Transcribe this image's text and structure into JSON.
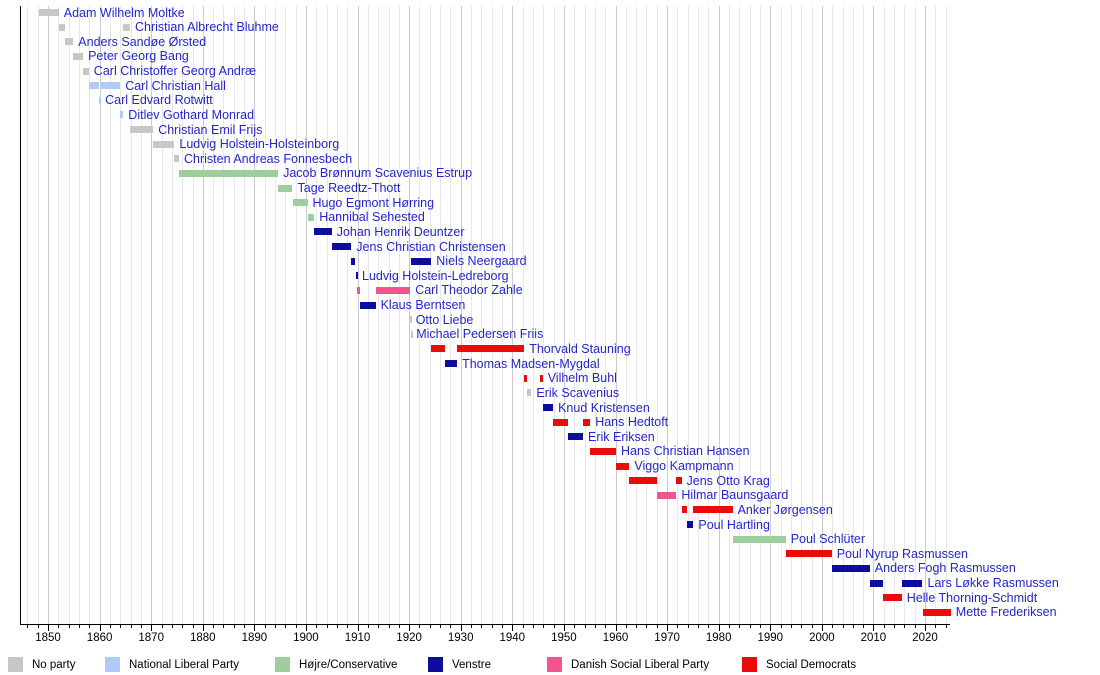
{
  "chart_data": {
    "type": "timeline",
    "description": "Gantt-style timeline of Danish prime ministers by party",
    "x_axis": {
      "unit": "year",
      "range": [
        1846,
        2025
      ],
      "minor_tick_step_years": 2,
      "major_tick_step_years": 10,
      "tick_labels": [
        "1850",
        "1860",
        "1870",
        "1880",
        "1890",
        "1900",
        "1910",
        "1920",
        "1930",
        "1940",
        "1950",
        "1960",
        "1970",
        "1980",
        "1990",
        "2000",
        "2010",
        "2020"
      ]
    },
    "grid": {
      "minor_color": "#e7e7ee",
      "major_color": "#cbcbd6",
      "on": true
    },
    "label_color": "#2525cd",
    "legend": [
      {
        "key": "no_party",
        "label": "No party",
        "color": "#c7c7c7"
      },
      {
        "key": "national_liberal",
        "label": "National Liberal Party",
        "color": "#b0ccf4"
      },
      {
        "key": "hojre",
        "label": "Højre/Conservative",
        "color": "#9ecd9e"
      },
      {
        "key": "venstre",
        "label": "Venstre",
        "color": "#0d0d9c"
      },
      {
        "key": "social_liberal",
        "label": "Danish Social Liberal Party",
        "color": "#f2558d"
      },
      {
        "key": "social_democrats",
        "label": "Social Democrats",
        "color": "#ec0b0b"
      }
    ],
    "prime_ministers": [
      {
        "name": "Adam Wilhelm Moltke",
        "party": "no_party",
        "terms": [
          [
            1848.2,
            1852.1
          ]
        ]
      },
      {
        "name": "Christian Albrecht Bluhme",
        "party": "no_party",
        "terms": [
          [
            1852.1,
            1853.3
          ],
          [
            1864.6,
            1865.9
          ]
        ]
      },
      {
        "name": "Anders Sandøe Ørsted",
        "party": "no_party",
        "terms": [
          [
            1853.3,
            1854.9
          ]
        ]
      },
      {
        "name": "Peter Georg Bang",
        "party": "no_party",
        "terms": [
          [
            1854.9,
            1856.8
          ]
        ]
      },
      {
        "name": "Carl Christoffer Georg Andræ",
        "party": "no_party",
        "terms": [
          [
            1856.8,
            1857.9
          ]
        ]
      },
      {
        "name": "Carl Christian Hall",
        "party": "national_liberal",
        "terms": [
          [
            1857.9,
            1859.9
          ],
          [
            1860.2,
            1864.0
          ]
        ]
      },
      {
        "name": "Carl Edvard Rotwitt",
        "party": "national_liberal",
        "terms": [
          [
            1859.9,
            1860.1
          ]
        ]
      },
      {
        "name": "Ditlev Gothard Monrad",
        "party": "national_liberal",
        "terms": [
          [
            1864.0,
            1864.6
          ]
        ]
      },
      {
        "name": "Christian Emil Frijs",
        "party": "no_party",
        "terms": [
          [
            1865.9,
            1870.4
          ]
        ]
      },
      {
        "name": "Ludvig Holstein-Holsteinborg",
        "party": "no_party",
        "terms": [
          [
            1870.4,
            1874.5
          ]
        ]
      },
      {
        "name": "Christen Andreas Fonnesbech",
        "party": "no_party",
        "terms": [
          [
            1874.5,
            1875.4
          ]
        ]
      },
      {
        "name": "Jacob Brønnum Scavenius Estrup",
        "party": "hojre",
        "terms": [
          [
            1875.4,
            1894.6
          ]
        ]
      },
      {
        "name": "Tage Reedtz-Thott",
        "party": "hojre",
        "terms": [
          [
            1894.6,
            1897.4
          ]
        ]
      },
      {
        "name": "Hugo Egmont Hørring",
        "party": "hojre",
        "terms": [
          [
            1897.4,
            1900.3
          ]
        ]
      },
      {
        "name": "Hannibal Sehested",
        "party": "hojre",
        "terms": [
          [
            1900.3,
            1901.6
          ]
        ]
      },
      {
        "name": "Johan Henrik Deuntzer",
        "party": "venstre",
        "terms": [
          [
            1901.6,
            1905.0
          ]
        ]
      },
      {
        "name": "Jens Christian Christensen",
        "party": "venstre",
        "terms": [
          [
            1905.0,
            1908.8
          ]
        ]
      },
      {
        "name": "Niels Neergaard",
        "party": "venstre",
        "terms": [
          [
            1908.8,
            1909.6
          ],
          [
            1920.4,
            1924.3
          ]
        ]
      },
      {
        "name": "Ludvig Holstein-Ledreborg",
        "party": "venstre",
        "terms": [
          [
            1909.6,
            1909.9
          ]
        ]
      },
      {
        "name": "Carl Theodor Zahle",
        "party": "social_liberal",
        "terms": [
          [
            1909.9,
            1910.5
          ],
          [
            1913.5,
            1920.2
          ]
        ]
      },
      {
        "name": "Klaus Berntsen",
        "party": "venstre",
        "terms": [
          [
            1910.5,
            1913.5
          ]
        ]
      },
      {
        "name": "Otto Liebe",
        "party": "no_party",
        "terms": [
          [
            1920.2,
            1920.3
          ]
        ]
      },
      {
        "name": "Michael Pedersen Friis",
        "party": "no_party",
        "terms": [
          [
            1920.3,
            1920.4
          ]
        ]
      },
      {
        "name": "Thorvald Stauning",
        "party": "social_democrats",
        "terms": [
          [
            1924.3,
            1926.9
          ],
          [
            1929.3,
            1942.3
          ]
        ]
      },
      {
        "name": "Thomas Madsen-Mygdal",
        "party": "venstre",
        "terms": [
          [
            1926.9,
            1929.3
          ]
        ]
      },
      {
        "name": "Vilhelm Buhl",
        "party": "social_democrats",
        "terms": [
          [
            1942.3,
            1942.9
          ],
          [
            1945.4,
            1945.9
          ]
        ]
      },
      {
        "name": "Erik Scavenius",
        "party": "no_party",
        "terms": [
          [
            1942.9,
            1943.7
          ]
        ]
      },
      {
        "name": "Knud Kristensen",
        "party": "venstre",
        "terms": [
          [
            1945.9,
            1947.9
          ]
        ]
      },
      {
        "name": "Hans Hedtoft",
        "party": "social_democrats",
        "terms": [
          [
            1947.9,
            1950.8
          ],
          [
            1953.7,
            1955.1
          ]
        ]
      },
      {
        "name": "Erik Eriksen",
        "party": "venstre",
        "terms": [
          [
            1950.8,
            1953.7
          ]
        ]
      },
      {
        "name": "Hans Christian Hansen",
        "party": "social_democrats",
        "terms": [
          [
            1955.1,
            1960.1
          ]
        ]
      },
      {
        "name": "Viggo Kampmann",
        "party": "social_democrats",
        "terms": [
          [
            1960.1,
            1962.7
          ]
        ]
      },
      {
        "name": "Jens Otto Krag",
        "party": "social_democrats",
        "terms": [
          [
            1962.7,
            1968.1
          ],
          [
            1971.8,
            1972.8
          ]
        ]
      },
      {
        "name": "Hilmar Baunsgaard",
        "party": "social_liberal",
        "terms": [
          [
            1968.1,
            1971.8
          ]
        ]
      },
      {
        "name": "Anker Jørgensen",
        "party": "social_democrats",
        "terms": [
          [
            1972.8,
            1973.9
          ],
          [
            1975.1,
            1982.7
          ]
        ]
      },
      {
        "name": "Poul Hartling",
        "party": "venstre",
        "terms": [
          [
            1973.9,
            1975.1
          ]
        ]
      },
      {
        "name": "Poul Schlüter",
        "party": "hojre",
        "terms": [
          [
            1982.7,
            1993.0
          ]
        ]
      },
      {
        "name": "Poul Nyrup Rasmussen",
        "party": "social_democrats",
        "terms": [
          [
            1993.0,
            2001.9
          ]
        ]
      },
      {
        "name": "Anders Fogh Rasmussen",
        "party": "venstre",
        "terms": [
          [
            2001.9,
            2009.3
          ]
        ]
      },
      {
        "name": "Lars Løkke Rasmussen",
        "party": "venstre",
        "terms": [
          [
            2009.3,
            2011.8
          ],
          [
            2015.5,
            2019.5
          ]
        ]
      },
      {
        "name": "Helle Thorning-Schmidt",
        "party": "social_democrats",
        "terms": [
          [
            2011.8,
            2015.5
          ]
        ]
      },
      {
        "name": "Mette Frederiksen",
        "party": "social_democrats",
        "terms": [
          [
            2019.5,
            2025.0
          ]
        ]
      }
    ]
  }
}
